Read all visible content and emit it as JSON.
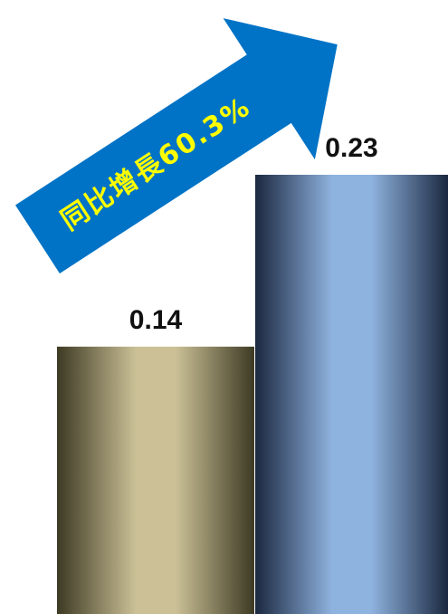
{
  "chart_data": {
    "type": "bar",
    "categories": [
      "",
      ""
    ],
    "values": [
      0.14,
      0.23
    ],
    "value_labels": [
      "0.14",
      "0.23"
    ],
    "ylim": [
      0,
      0.23
    ],
    "grid": false,
    "colors": {
      "bar_1_light": "#cbc096",
      "bar_1_dark": "#3d3a24",
      "bar_2_light": "#8fb3df",
      "bar_2_dark": "#1b2840"
    },
    "annotation": {
      "text": "同比增長60.3%",
      "icon": "up-right-arrow-icon",
      "fill": "#0073c6",
      "text_color": "#ffff00"
    }
  }
}
